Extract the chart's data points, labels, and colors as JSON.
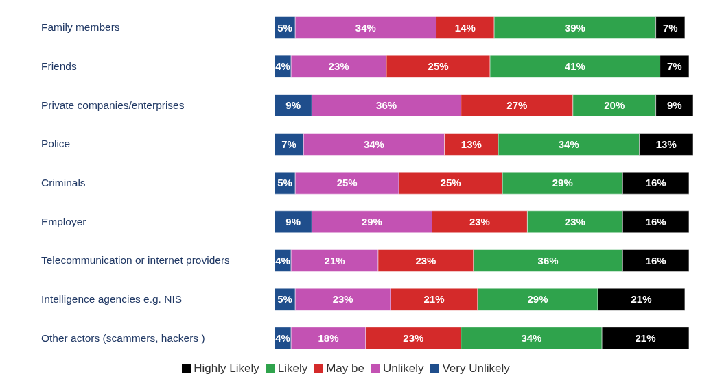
{
  "chart_data": {
    "type": "bar",
    "orientation": "horizontal",
    "stacked": true,
    "tick_labels": "y",
    "legend": "bottom",
    "grid": false,
    "categories": [
      "Family members",
      "Friends",
      "Private companies/enterprises",
      "Police",
      "Criminals",
      "Employer",
      "Telecommunication or internet providers",
      "Intelligence agencies e.g. NIS",
      "Other actors (scammers, hackers )"
    ],
    "series": [
      {
        "name": "Very Unlikely",
        "color": "#1f4e8c",
        "values": [
          5,
          4,
          9,
          7,
          5,
          9,
          4,
          5,
          4
        ],
        "value_labels": [
          "5%",
          "4%",
          "9%",
          "7%",
          "5%",
          "9%",
          "4%",
          "5%",
          "4%"
        ]
      },
      {
        "name": "Unlikely",
        "color": "#c352b3",
        "values": [
          34,
          23,
          36,
          34,
          25,
          29,
          21,
          23,
          18
        ],
        "value_labels": [
          "34%",
          "23%",
          "36%",
          "34%",
          "25%",
          "29%",
          "21%",
          "23%",
          "18%"
        ]
      },
      {
        "name": "May be",
        "color": "#d42a2a",
        "values": [
          14,
          25,
          27,
          13,
          25,
          23,
          23,
          21,
          23
        ],
        "value_labels": [
          "14%",
          "25%",
          "27%",
          "13%",
          "25%",
          "23%",
          "23%",
          "21%",
          "23%"
        ]
      },
      {
        "name": "Likely",
        "color": "#2fa34c",
        "values": [
          39,
          41,
          20,
          34,
          29,
          23,
          36,
          29,
          34
        ],
        "value_labels": [
          "39%",
          "41%",
          "20%",
          "34%",
          "29%",
          "23%",
          "36%",
          "29%",
          "34%"
        ]
      },
      {
        "name": "Highly Likely",
        "color": "#000000",
        "values": [
          7,
          7,
          9,
          13,
          16,
          16,
          16,
          21,
          21
        ],
        "value_labels": [
          "7%",
          "7%",
          "9%",
          "13%",
          "16%",
          "16%",
          "16%",
          "21%",
          "21%"
        ]
      }
    ]
  }
}
